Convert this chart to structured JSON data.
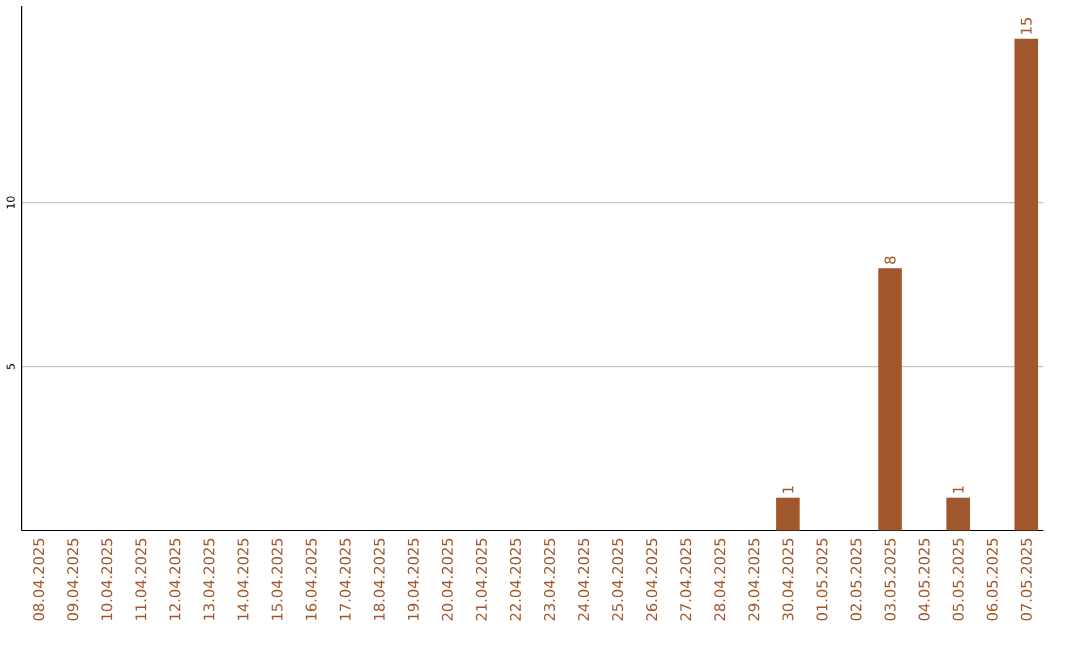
{
  "chart_data": {
    "type": "bar",
    "categories": [
      "08.04.2025",
      "09.04.2025",
      "10.04.2025",
      "11.04.2025",
      "12.04.2025",
      "13.04.2025",
      "14.04.2025",
      "15.04.2025",
      "16.04.2025",
      "17.04.2025",
      "18.04.2025",
      "19.04.2025",
      "20.04.2025",
      "21.04.2025",
      "22.04.2025",
      "23.04.2025",
      "24.04.2025",
      "25.04.2025",
      "26.04.2025",
      "27.04.2025",
      "28.04.2025",
      "29.04.2025",
      "30.04.2025",
      "01.05.2025",
      "02.05.2025",
      "03.05.2025",
      "04.05.2025",
      "05.05.2025",
      "06.05.2025",
      "07.05.2025"
    ],
    "values": [
      0,
      0,
      0,
      0,
      0,
      0,
      0,
      0,
      0,
      0,
      0,
      0,
      0,
      0,
      0,
      0,
      0,
      0,
      0,
      0,
      0,
      0,
      1,
      0,
      0,
      8,
      0,
      1,
      0,
      15
    ],
    "value_labels": [
      null,
      null,
      null,
      null,
      null,
      null,
      null,
      null,
      null,
      null,
      null,
      null,
      null,
      null,
      null,
      null,
      null,
      null,
      null,
      null,
      null,
      null,
      "1",
      null,
      null,
      "8",
      null,
      "1",
      null,
      "15"
    ],
    "color": "#a0572b",
    "ylim": [
      0,
      16
    ],
    "yticks": [
      5,
      10
    ],
    "grid": "y"
  }
}
